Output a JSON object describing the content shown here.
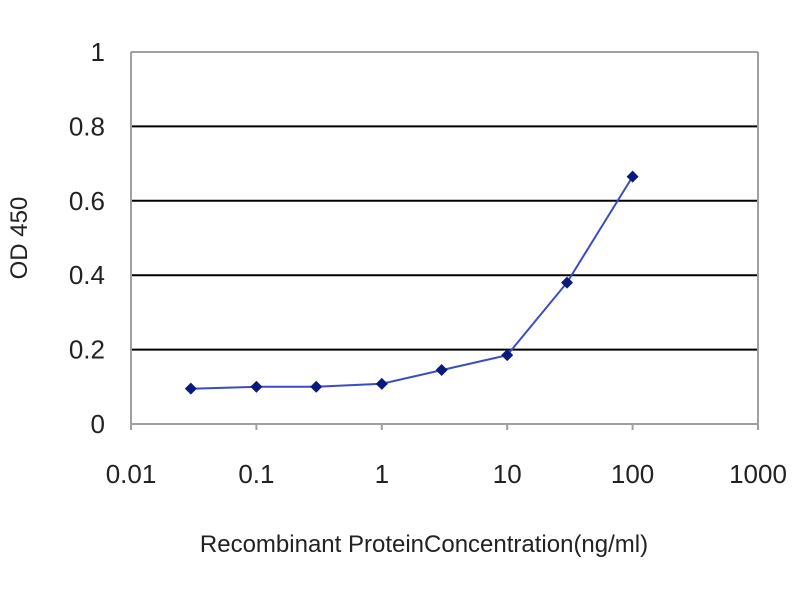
{
  "chart_data": {
    "type": "line",
    "title": "",
    "xlabel": "Recombinant ProteinConcentration(ng/ml)",
    "ylabel": "OD 450",
    "x_scale": "log",
    "xlim": [
      0.01,
      1000
    ],
    "ylim": [
      0,
      1
    ],
    "x_ticks": [
      "0.01",
      "0.1",
      "1",
      "10",
      "100",
      "1000"
    ],
    "y_ticks": [
      "0",
      "0.2",
      "0.4",
      "0.6",
      "0.8",
      "1"
    ],
    "grid": "horizontal",
    "legend": "none",
    "series": [
      {
        "x": [
          0.03,
          0.1,
          0.3,
          1,
          3,
          10,
          30,
          100
        ],
        "y": [
          0.095,
          0.1,
          0.1,
          0.108,
          0.145,
          0.185,
          0.38,
          0.665
        ]
      }
    ],
    "colors": {
      "line": "#3b4cc0",
      "marker": "#0a1a7a",
      "grid": "#000000",
      "frame": "#a0a0a0"
    }
  }
}
